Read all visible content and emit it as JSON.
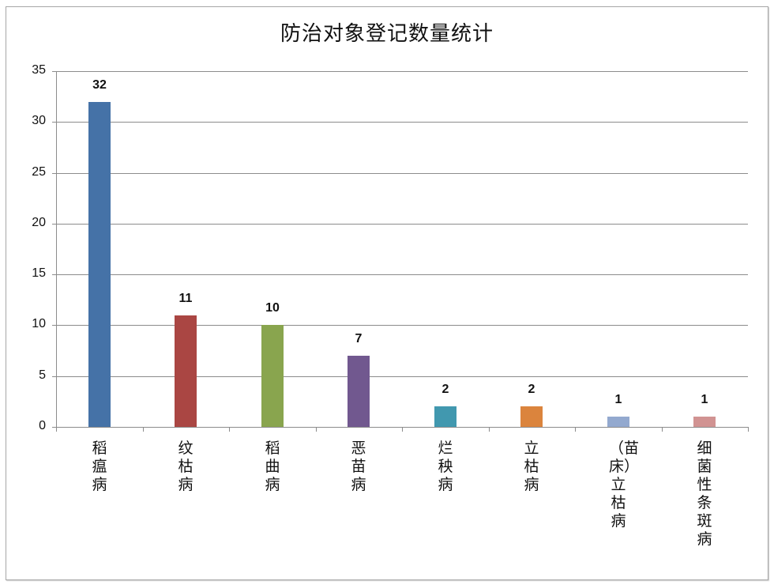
{
  "chart_data": {
    "type": "bar",
    "title": "防治对象登记数量统计",
    "xlabel": "",
    "ylabel": "",
    "ylim": [
      0,
      35
    ],
    "yticks": [
      0,
      5,
      10,
      15,
      20,
      25,
      30,
      35
    ],
    "grid": true,
    "legend": "none",
    "categories": [
      "稻瘟病",
      "纹枯病",
      "稻曲病",
      "恶苗病",
      "烂秧病",
      "立枯病",
      "（苗床）立枯病",
      "细菌性条斑病"
    ],
    "values": [
      32,
      11,
      10,
      7,
      2,
      2,
      1,
      1
    ],
    "colors": [
      "#4572a7",
      "#aa4643",
      "#89a54e",
      "#71588f",
      "#4198af",
      "#db843d",
      "#93a9cf",
      "#d19392"
    ],
    "data_labels": [
      "32",
      "11",
      "10",
      "7",
      "2",
      "2",
      "1",
      "1"
    ]
  }
}
